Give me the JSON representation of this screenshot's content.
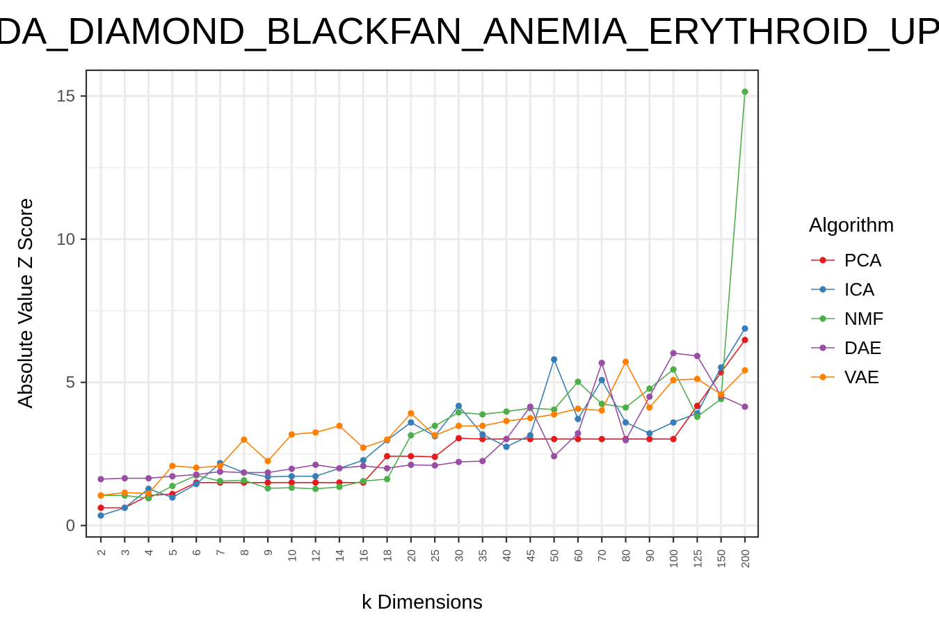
{
  "chart_data": {
    "type": "line",
    "title": "DA_DIAMOND_BLACKFAN_ANEMIA_ERYTHROID_UP",
    "xlabel": "k Dimensions",
    "ylabel": "Absolute Value Z Score",
    "categories": [
      "2",
      "3",
      "4",
      "5",
      "6",
      "7",
      "8",
      "9",
      "10",
      "12",
      "14",
      "16",
      "18",
      "20",
      "25",
      "30",
      "35",
      "40",
      "45",
      "50",
      "60",
      "70",
      "80",
      "90",
      "100",
      "125",
      "150",
      "200"
    ],
    "ylim": [
      -0.4,
      15.9
    ],
    "yticks": [
      "0",
      "5",
      "10",
      "15"
    ],
    "grid": true,
    "legend": {
      "title": "Algorithm",
      "position": "right"
    },
    "series": [
      {
        "name": "PCA",
        "color": "#e41a1c",
        "values": [
          0.62,
          0.62,
          1.05,
          1.1,
          1.5,
          1.5,
          1.5,
          1.5,
          1.5,
          1.5,
          1.5,
          1.5,
          2.42,
          2.42,
          2.4,
          3.05,
          3.02,
          3.02,
          3.02,
          3.02,
          3.02,
          3.02,
          3.02,
          3.02,
          3.02,
          4.18,
          5.35,
          6.48
        ]
      },
      {
        "name": "ICA",
        "color": "#377eb8",
        "values": [
          0.35,
          0.62,
          1.28,
          0.98,
          1.45,
          2.18,
          1.85,
          1.7,
          1.72,
          1.72,
          2.0,
          2.28,
          2.98,
          3.6,
          3.12,
          4.18,
          3.18,
          2.75,
          3.15,
          5.8,
          3.72,
          5.08,
          3.6,
          3.22,
          3.6,
          3.92,
          5.52,
          6.88
        ]
      },
      {
        "name": "NMF",
        "color": "#4daf4a",
        "values": [
          1.05,
          1.05,
          0.95,
          1.38,
          1.75,
          1.55,
          1.58,
          1.3,
          1.32,
          1.28,
          1.35,
          1.55,
          1.62,
          3.15,
          3.48,
          3.95,
          3.88,
          3.98,
          4.1,
          4.05,
          5.02,
          4.25,
          4.12,
          4.78,
          5.45,
          3.8,
          4.42,
          15.15
        ]
      },
      {
        "name": "DAE",
        "color": "#984ea3",
        "values": [
          1.62,
          1.65,
          1.65,
          1.72,
          1.78,
          1.88,
          1.85,
          1.85,
          1.98,
          2.12,
          2.0,
          2.08,
          2.0,
          2.12,
          2.1,
          2.22,
          2.25,
          3.02,
          4.15,
          2.42,
          3.22,
          5.68,
          2.98,
          4.5,
          6.02,
          5.92,
          4.52,
          4.15
        ]
      },
      {
        "name": "VAE",
        "color": "#ff7f00",
        "values": [
          1.05,
          1.15,
          1.12,
          2.08,
          2.02,
          2.08,
          3.0,
          2.25,
          3.18,
          3.25,
          3.48,
          2.72,
          3.0,
          3.92,
          3.15,
          3.48,
          3.48,
          3.65,
          3.75,
          3.88,
          4.08,
          4.02,
          5.72,
          4.12,
          5.08,
          5.12,
          4.58,
          5.42
        ]
      }
    ]
  }
}
